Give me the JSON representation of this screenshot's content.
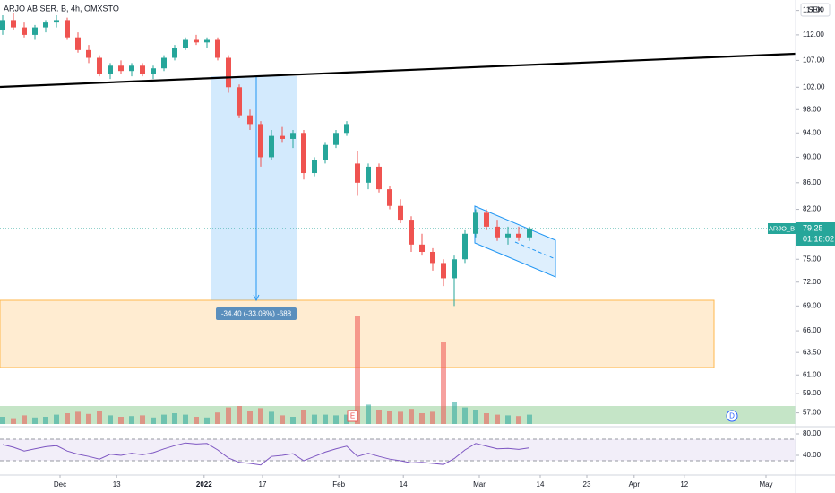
{
  "chart_data": {
    "type": "candlestick",
    "title": "ARJO AB SER. B, 4h, OMXSTO",
    "currency": "SEK",
    "symbol": "ARJO_B",
    "last_price": 79.25,
    "countdown": "01:18:02",
    "measure_label": "-34.40 (-33.08%) -688",
    "markers": [
      "E",
      "D"
    ],
    "log_scale": true,
    "up_color": "#26a69a",
    "down_color": "#ef5350",
    "ylim": [
      55.7,
      119.2
    ],
    "yticks": [
      {
        "value": 117,
        "label": "117.00"
      },
      {
        "value": 112,
        "label": "112.00"
      },
      {
        "value": 107,
        "label": "107.00"
      },
      {
        "value": 102,
        "label": "102.00"
      },
      {
        "value": 98,
        "label": "98.00"
      },
      {
        "value": 94,
        "label": "94.00"
      },
      {
        "value": 90,
        "label": "90.00"
      },
      {
        "value": 86,
        "label": "86.00"
      },
      {
        "value": 82,
        "label": "82.00"
      },
      {
        "value": 75,
        "label": "75.00"
      },
      {
        "value": 72,
        "label": "72.00"
      },
      {
        "value": 69,
        "label": "69.00"
      },
      {
        "value": 66,
        "label": "66.00"
      },
      {
        "value": 63.5,
        "label": "63.50"
      },
      {
        "value": 61,
        "label": "61.00"
      },
      {
        "value": 59,
        "label": "59.00"
      },
      {
        "value": 57,
        "label": "57.00"
      }
    ],
    "xlim": [
      -8.375,
      102.625
    ],
    "xticks": [
      {
        "value": 0,
        "label": "Dec"
      },
      {
        "value": 7.9,
        "label": "13"
      },
      {
        "value": 20.1,
        "label": "2022"
      },
      {
        "value": 28.25,
        "label": "17"
      },
      {
        "value": 38.9,
        "label": "Feb"
      },
      {
        "value": 47.9,
        "label": "14"
      },
      {
        "value": 58.5,
        "label": "Mar"
      },
      {
        "value": 67,
        "label": "14"
      },
      {
        "value": 73.5,
        "label": "23"
      },
      {
        "value": 80.1,
        "label": "Apr"
      },
      {
        "value": 87.1,
        "label": "12"
      },
      {
        "value": 98.5,
        "label": "May"
      }
    ],
    "x": [
      -8,
      -6.5,
      -5,
      -3.5,
      -2,
      -0.5,
      1,
      2.5,
      4,
      5.5,
      7,
      8.5,
      10,
      11.5,
      13,
      14.5,
      16,
      17.5,
      19,
      20.5,
      22,
      23.5,
      25,
      26.5,
      28,
      29.5,
      31,
      32.5,
      34,
      35.5,
      37,
      38.5,
      40,
      41.5,
      43,
      44.5,
      46,
      47.5,
      49,
      50.5,
      52,
      53.5,
      55,
      56.5,
      58,
      59.5,
      61,
      62.5,
      64,
      65.5
    ],
    "open": [
      113,
      115,
      113.5,
      112,
      113.5,
      114.5,
      115,
      111.5,
      109,
      107.5,
      104.5,
      106,
      105,
      106,
      104.5,
      105.5,
      107.5,
      109.5,
      111,
      110.5,
      111,
      107.5,
      102,
      97,
      95.5,
      90,
      93.5,
      93,
      94,
      87.5,
      89.5,
      92,
      94,
      89,
      86,
      88.5,
      85,
      82.5,
      80.5,
      77,
      76,
      74.5,
      72.5,
      75,
      78.5,
      81.5,
      79.5,
      78,
      78.5,
      78
    ],
    "high": [
      116,
      116.5,
      114.5,
      114,
      115,
      116,
      115.5,
      112.5,
      110,
      108,
      106.5,
      107,
      106.5,
      106.5,
      106,
      108,
      110,
      111.5,
      112,
      111.5,
      111.5,
      108,
      102.5,
      98,
      96,
      94.5,
      95,
      94.5,
      94.5,
      90,
      92.5,
      94.5,
      96,
      91,
      89,
      89,
      85.5,
      83.5,
      81,
      78.5,
      76.5,
      75,
      75.5,
      79,
      82,
      82,
      80.5,
      79.5,
      79.5,
      79.5
    ],
    "low": [
      112,
      113,
      111.5,
      111,
      112.5,
      113.5,
      111,
      108.5,
      106.5,
      104,
      103.5,
      104.5,
      104,
      104,
      103.5,
      105,
      107,
      109,
      110,
      109.5,
      107,
      101,
      96.5,
      94.5,
      88.5,
      89.5,
      92.5,
      91.5,
      86.5,
      87,
      89,
      91.5,
      93.5,
      84,
      85,
      84.5,
      82,
      80,
      76,
      75.5,
      73.5,
      71.5,
      69,
      74.5,
      78,
      79,
      77.5,
      77,
      77.5,
      77.5
    ],
    "close": [
      115,
      113.5,
      112,
      113.5,
      114.5,
      115,
      111.5,
      109,
      107.5,
      104.5,
      106,
      105,
      106,
      104.5,
      105.5,
      107.5,
      109.5,
      111,
      110.5,
      111,
      107.5,
      102,
      97,
      95.5,
      90,
      93.5,
      93,
      94,
      87.5,
      89.5,
      92,
      94,
      95.5,
      86,
      88.5,
      85,
      82.5,
      80.5,
      77,
      76,
      74.5,
      72.5,
      75,
      78.5,
      81.5,
      79.5,
      78,
      78.5,
      78,
      79.25
    ],
    "volume": [
      10,
      8,
      12,
      9,
      10,
      13,
      15,
      17,
      14,
      18,
      12,
      10,
      11,
      12,
      9,
      13,
      15,
      13,
      10,
      9,
      16,
      23,
      25,
      18,
      22,
      17,
      12,
      10,
      20,
      13,
      13,
      12,
      13,
      150,
      27,
      20,
      18,
      17,
      21,
      15,
      17,
      115,
      30,
      23,
      20,
      15,
      13,
      12,
      11,
      13
    ],
    "rsi": [
      60,
      55,
      48,
      52,
      56,
      58,
      48,
      42,
      38,
      33,
      42,
      40,
      44,
      41,
      45,
      52,
      58,
      63,
      61,
      62,
      50,
      35,
      27,
      25,
      22,
      38,
      40,
      43,
      30,
      38,
      46,
      52,
      57,
      38,
      44,
      38,
      33,
      30,
      26,
      27,
      25,
      23,
      34,
      50,
      62,
      57,
      52,
      53,
      51,
      54
    ],
    "rsi_ylim": [
      3.3,
      90
    ],
    "rsi_yticks": [
      {
        "value": 80,
        "label": "80.00"
      },
      {
        "value": 40,
        "label": "40.00"
      }
    ],
    "rsi_levels": [
      70,
      30
    ]
  }
}
